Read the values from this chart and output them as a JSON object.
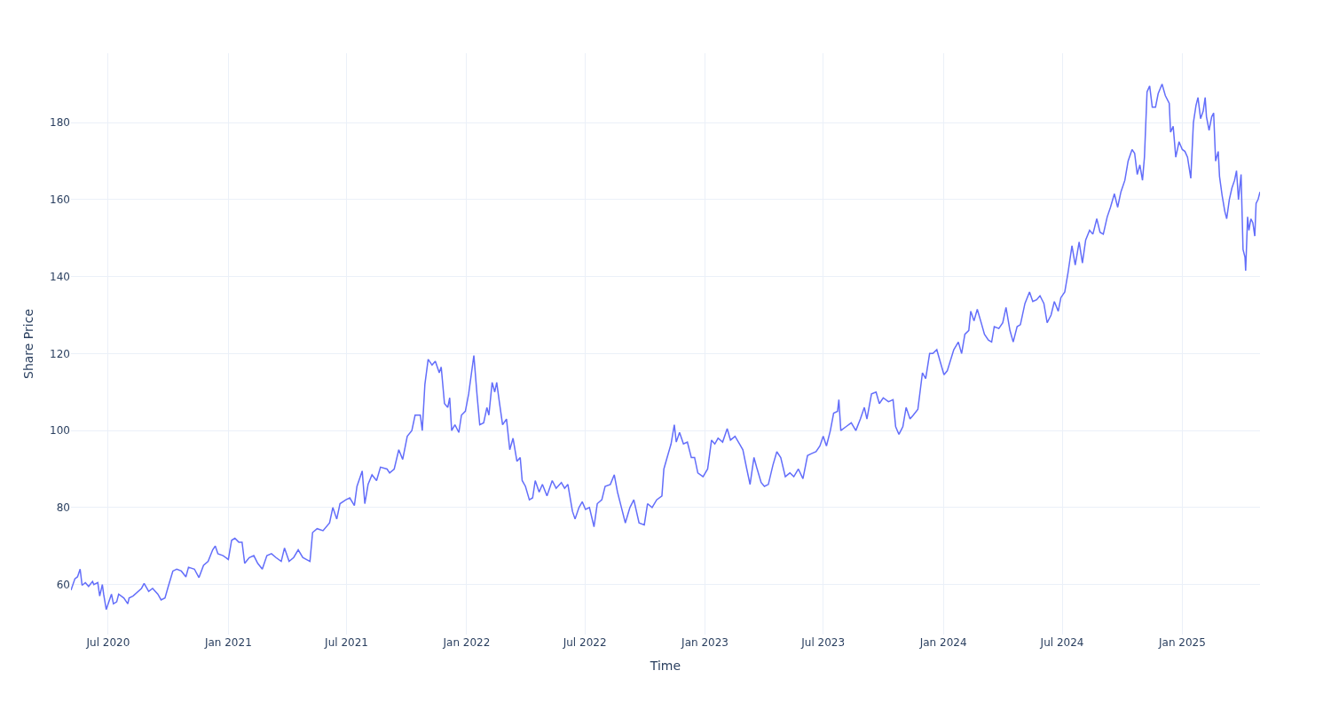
{
  "chart_data": {
    "type": "line",
    "xlabel": "Time",
    "ylabel": "Share Price",
    "xlim": [
      "2020-05-05",
      "2025-04-30"
    ],
    "xticks": [
      {
        "value": "2020-07-01",
        "label": "Jul 2020"
      },
      {
        "value": "2021-01-01",
        "label": "Jan 2021"
      },
      {
        "value": "2021-07-01",
        "label": "Jul 2021"
      },
      {
        "value": "2022-01-01",
        "label": "Jan 2022"
      },
      {
        "value": "2022-07-01",
        "label": "Jul 2022"
      },
      {
        "value": "2023-01-01",
        "label": "Jan 2023"
      },
      {
        "value": "2023-07-01",
        "label": "Jul 2023"
      },
      {
        "value": "2024-01-01",
        "label": "Jan 2024"
      },
      {
        "value": "2024-07-01",
        "label": "Jul 2024"
      },
      {
        "value": "2025-01-01",
        "label": "Jan 2025"
      }
    ],
    "ylim": [
      47,
      198
    ],
    "yticks": [
      60,
      80,
      100,
      120,
      140,
      160,
      180
    ],
    "grid": true,
    "marker": "none",
    "line_style": "solid",
    "x": [
      "2020-05-05",
      "2020-05-11",
      "2020-05-15",
      "2020-05-19",
      "2020-05-22",
      "2020-05-27",
      "2020-06-01",
      "2020-06-07",
      "2020-06-09",
      "2020-06-15",
      "2020-06-18",
      "2020-06-22",
      "2020-06-24",
      "2020-06-28",
      "2020-07-04",
      "2020-07-06",
      "2020-07-09",
      "2020-07-14",
      "2020-07-17",
      "2020-07-25",
      "2020-07-31",
      "2020-08-02",
      "2020-08-08",
      "2020-08-21",
      "2020-08-25",
      "2020-09-01",
      "2020-09-07",
      "2020-09-15",
      "2020-09-20",
      "2020-09-26",
      "2020-10-01",
      "2020-10-08",
      "2020-10-14",
      "2020-10-21",
      "2020-10-28",
      "2020-11-01",
      "2020-11-10",
      "2020-11-17",
      "2020-11-24",
      "2020-12-01",
      "2020-12-08",
      "2020-12-12",
      "2020-12-16",
      "2020-12-24",
      "2021-01-01",
      "2021-01-06",
      "2021-01-11",
      "2021-01-17",
      "2021-01-22",
      "2021-01-26",
      "2021-02-02",
      "2021-02-09",
      "2021-02-15",
      "2021-02-22",
      "2021-03-01",
      "2021-03-08",
      "2021-03-15",
      "2021-03-23",
      "2021-03-28",
      "2021-04-04",
      "2021-04-11",
      "2021-04-18",
      "2021-04-25",
      "2021-05-06",
      "2021-05-10",
      "2021-05-17",
      "2021-05-26",
      "2021-06-05",
      "2021-06-10",
      "2021-06-16",
      "2021-06-21",
      "2021-06-30",
      "2021-07-06",
      "2021-07-13",
      "2021-07-17",
      "2021-07-25",
      "2021-07-29",
      "2021-08-03",
      "2021-08-09",
      "2021-08-16",
      "2021-08-22",
      "2021-09-01",
      "2021-09-05",
      "2021-09-12",
      "2021-09-19",
      "2021-09-25",
      "2021-10-02",
      "2021-10-09",
      "2021-10-14",
      "2021-10-22",
      "2021-10-25",
      "2021-10-29",
      "2021-11-03",
      "2021-11-09",
      "2021-11-14",
      "2021-11-20",
      "2021-11-23",
      "2021-11-28",
      "2021-12-03",
      "2021-12-06",
      "2021-12-09",
      "2021-12-14",
      "2021-12-20",
      "2021-12-24",
      "2021-12-30",
      "2022-01-04",
      "2022-01-12",
      "2022-01-17",
      "2022-01-21",
      "2022-01-27",
      "2022-02-01",
      "2022-02-04",
      "2022-02-09",
      "2022-02-13",
      "2022-02-16",
      "2022-02-20",
      "2022-02-25",
      "2022-03-03",
      "2022-03-08",
      "2022-03-13",
      "2022-03-19",
      "2022-03-24",
      "2022-03-27",
      "2022-04-01",
      "2022-04-07",
      "2022-04-12",
      "2022-04-16",
      "2022-04-22",
      "2022-04-27",
      "2022-05-04",
      "2022-05-12",
      "2022-05-18",
      "2022-05-26",
      "2022-05-31",
      "2022-06-05",
      "2022-06-12",
      "2022-06-16",
      "2022-06-22",
      "2022-06-27",
      "2022-07-02",
      "2022-07-08",
      "2022-07-15",
      "2022-07-20",
      "2022-07-27",
      "2022-08-01",
      "2022-08-09",
      "2022-08-15",
      "2022-08-20",
      "2022-08-26",
      "2022-09-01",
      "2022-09-08",
      "2022-09-14",
      "2022-09-22",
      "2022-09-30",
      "2022-10-05",
      "2022-10-12",
      "2022-10-19",
      "2022-10-27",
      "2022-10-30",
      "2022-11-04",
      "2022-11-10",
      "2022-11-15",
      "2022-11-18",
      "2022-11-23",
      "2022-11-29",
      "2022-12-05",
      "2022-12-11",
      "2022-12-16",
      "2022-12-21",
      "2022-12-29",
      "2023-01-05",
      "2023-01-11",
      "2023-01-16",
      "2023-01-21",
      "2023-01-28",
      "2023-02-04",
      "2023-02-09",
      "2023-02-16",
      "2023-02-23",
      "2023-02-28",
      "2023-03-06",
      "2023-03-11",
      "2023-03-17",
      "2023-03-21",
      "2023-03-28",
      "2023-04-02",
      "2023-04-08",
      "2023-04-15",
      "2023-04-21",
      "2023-04-27",
      "2023-05-04",
      "2023-05-11",
      "2023-05-17",
      "2023-05-24",
      "2023-05-31",
      "2023-06-07",
      "2023-06-13",
      "2023-06-20",
      "2023-06-26",
      "2023-07-01",
      "2023-07-06",
      "2023-07-12",
      "2023-07-17",
      "2023-07-23",
      "2023-07-25",
      "2023-07-28",
      "2023-08-05",
      "2023-08-13",
      "2023-08-20",
      "2023-08-27",
      "2023-09-02",
      "2023-09-06",
      "2023-09-13",
      "2023-09-20",
      "2023-09-25",
      "2023-10-01",
      "2023-10-09",
      "2023-10-16",
      "2023-10-20",
      "2023-10-25",
      "2023-10-31",
      "2023-11-05",
      "2023-11-11",
      "2023-11-16",
      "2023-11-23",
      "2023-11-30",
      "2023-12-05",
      "2023-12-11",
      "2023-12-16",
      "2023-12-22",
      "2023-12-27",
      "2024-01-02",
      "2024-01-07",
      "2024-01-17",
      "2024-01-24",
      "2024-01-29",
      "2024-02-03",
      "2024-02-09",
      "2024-02-12",
      "2024-02-17",
      "2024-02-22",
      "2024-02-28",
      "2024-03-04",
      "2024-03-10",
      "2024-03-15",
      "2024-03-19",
      "2024-03-26",
      "2024-04-01",
      "2024-04-06",
      "2024-04-12",
      "2024-04-17",
      "2024-04-23",
      "2024-04-28",
      "2024-05-05",
      "2024-05-12",
      "2024-05-17",
      "2024-05-23",
      "2024-05-28",
      "2024-06-03",
      "2024-06-08",
      "2024-06-14",
      "2024-06-19",
      "2024-06-25",
      "2024-06-29",
      "2024-07-05",
      "2024-07-10",
      "2024-07-16",
      "2024-07-21",
      "2024-07-27",
      "2024-08-01",
      "2024-08-06",
      "2024-08-12",
      "2024-08-17",
      "2024-08-23",
      "2024-08-28",
      "2024-09-02",
      "2024-09-08",
      "2024-09-13",
      "2024-09-19",
      "2024-09-24",
      "2024-09-29",
      "2024-10-05",
      "2024-10-10",
      "2024-10-16",
      "2024-10-20",
      "2024-10-24",
      "2024-10-28",
      "2024-11-01",
      "2024-11-04",
      "2024-11-08",
      "2024-11-12",
      "2024-11-16",
      "2024-11-21",
      "2024-11-25",
      "2024-12-01",
      "2024-12-06",
      "2024-12-12",
      "2024-12-14",
      "2024-12-18",
      "2024-12-22",
      "2024-12-27",
      "2025-01-01",
      "2025-01-05",
      "2025-01-09",
      "2025-01-14",
      "2025-01-18",
      "2025-01-22",
      "2025-01-25",
      "2025-01-29",
      "2025-02-02",
      "2025-02-05",
      "2025-02-07",
      "2025-02-11",
      "2025-02-15",
      "2025-02-18",
      "2025-02-21",
      "2025-02-25",
      "2025-02-27",
      "2025-03-03",
      "2025-03-07",
      "2025-03-10",
      "2025-03-14",
      "2025-03-18",
      "2025-03-22",
      "2025-03-25",
      "2025-03-28",
      "2025-04-01",
      "2025-04-04",
      "2025-04-07",
      "2025-04-08",
      "2025-04-11",
      "2025-04-13",
      "2025-04-16",
      "2025-04-19",
      "2025-04-22",
      "2025-04-24",
      "2025-04-27",
      "2025-04-30"
    ],
    "series": [
      {
        "color": "#636efa",
        "values": [
          58.5,
          61.5,
          62,
          64,
          59.8,
          60.5,
          59.5,
          60.8,
          60,
          60.5,
          57,
          60,
          57.5,
          53.5,
          56.5,
          57.5,
          55,
          55.5,
          57.5,
          56.5,
          55,
          56.5,
          57,
          59,
          60.3,
          58.2,
          59,
          57.5,
          56,
          56.5,
          59.5,
          63.5,
          64,
          63.5,
          62,
          64.5,
          64,
          61.8,
          65,
          66,
          69,
          70,
          68,
          67.5,
          66.5,
          71.5,
          72,
          71,
          71,
          65.5,
          67,
          67.5,
          65.5,
          64,
          67.5,
          68,
          67,
          66,
          69.5,
          66,
          67,
          69,
          67,
          66,
          73.5,
          74.5,
          74,
          76,
          80,
          77,
          81,
          82,
          82.5,
          80.5,
          85.5,
          89.5,
          81,
          86,
          88.5,
          87,
          90.5,
          90,
          89,
          90,
          95,
          92.5,
          98.5,
          100,
          104,
          104,
          100,
          112,
          118.5,
          117,
          118,
          115,
          116.5,
          107,
          106,
          108.5,
          100,
          101.5,
          99.5,
          104,
          105,
          109.5,
          119.5,
          109,
          101.5,
          102,
          106,
          104,
          112.5,
          110,
          112.5,
          107.5,
          101.5,
          103,
          95,
          98,
          92,
          93,
          87,
          85.5,
          82,
          82.5,
          87,
          84,
          86,
          83,
          87,
          85,
          86.5,
          85,
          86,
          79,
          77,
          80,
          81.5,
          79.5,
          80,
          75,
          81,
          82,
          85.5,
          86,
          88.5,
          84,
          80,
          76,
          80,
          82,
          76,
          75.5,
          81,
          80,
          82,
          83,
          90,
          93,
          96.5,
          101.5,
          97,
          99.5,
          96.5,
          97,
          93,
          93,
          89,
          88,
          90,
          97.5,
          96.5,
          98,
          97,
          100.5,
          97.5,
          98.5,
          96.5,
          95,
          90,
          86,
          93,
          90.5,
          86.5,
          85.5,
          86,
          91,
          94.5,
          93,
          88,
          89,
          88,
          90,
          87.5,
          93.5,
          94,
          94.5,
          96,
          98.5,
          96,
          100,
          104.5,
          105,
          108,
          100,
          101,
          102,
          100,
          103,
          106,
          103,
          109.5,
          110,
          107,
          108.5,
          107.5,
          108,
          101,
          99,
          101,
          106,
          103,
          104,
          105.5,
          115,
          113.5,
          120,
          120,
          121,
          118,
          114.5,
          115.5,
          121,
          123,
          120,
          125,
          126,
          131,
          128.5,
          131.5,
          128,
          125,
          123.5,
          123,
          127,
          126.5,
          128,
          132,
          126,
          123,
          127,
          127.5,
          133,
          136,
          133.5,
          134,
          135,
          133,
          128,
          130,
          133.5,
          131,
          134.5,
          136,
          141,
          148,
          143,
          149,
          143.5,
          149.5,
          152,
          151,
          155,
          151.5,
          151,
          155.5,
          158,
          161.5,
          158,
          162,
          165,
          170,
          173,
          172,
          166.5,
          169,
          165,
          171,
          188,
          189.5,
          184,
          184,
          187.5,
          190,
          187,
          185,
          177.5,
          179,
          171,
          175,
          173,
          172.5,
          171,
          165.5,
          180,
          184.5,
          186.5,
          181,
          183,
          186.5,
          181.5,
          178,
          181.5,
          182.5,
          170,
          172.5,
          166,
          161,
          157,
          155,
          160,
          163,
          165,
          167.5,
          160,
          166.5,
          147,
          145,
          141.5,
          155.5,
          152,
          155,
          154,
          150.5,
          159,
          160,
          162
        ]
      }
    ]
  }
}
